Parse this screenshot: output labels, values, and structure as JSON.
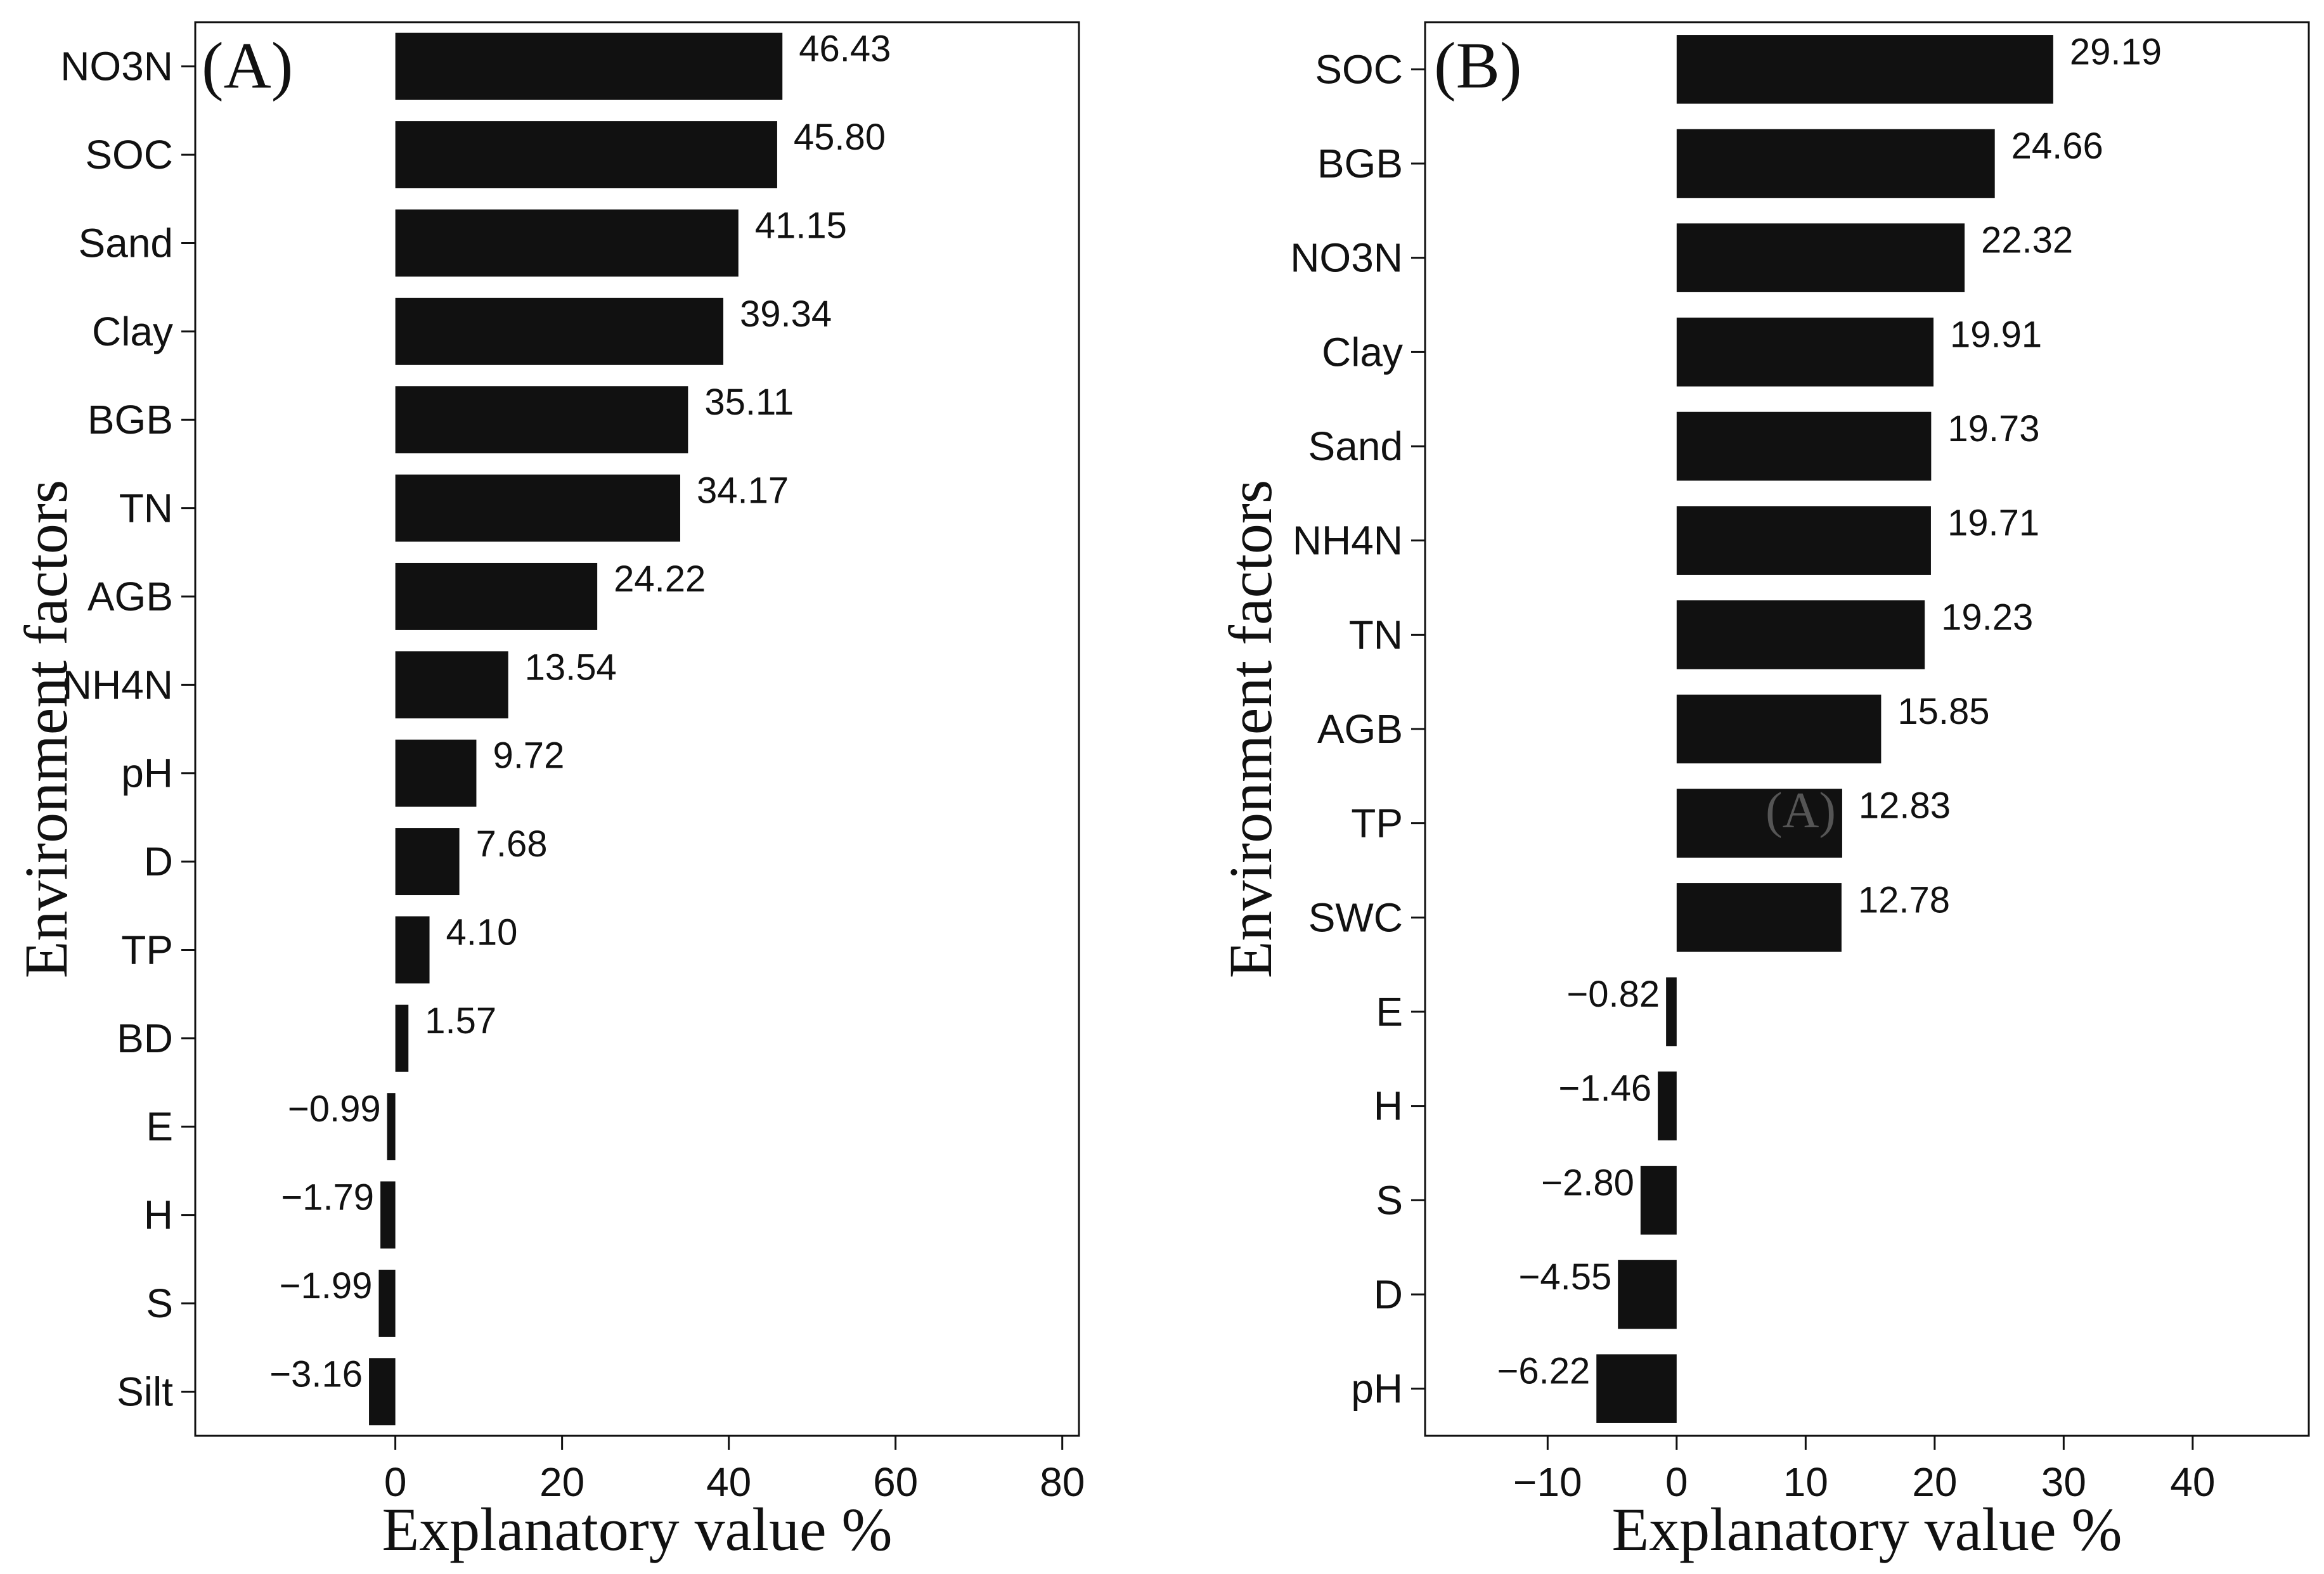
{
  "figure": {
    "stray_text": "(A)"
  },
  "chart_data": [
    {
      "type": "bar",
      "orientation": "horizontal",
      "panel_label": "(A)",
      "title": "",
      "xlabel": "Explanatory value %",
      "ylabel": "Environment factors",
      "categories": [
        "NO3N",
        "SOC",
        "Sand",
        "Clay",
        "BGB",
        "TN",
        "AGB",
        "NH4N",
        "pH",
        "D",
        "TP",
        "BD",
        "E",
        "H",
        "S",
        "Silt"
      ],
      "values": [
        46.43,
        45.8,
        41.15,
        39.34,
        35.11,
        34.17,
        24.22,
        13.54,
        9.72,
        7.68,
        4.1,
        1.57,
        -0.99,
        -1.79,
        -1.99,
        -3.16
      ],
      "value_labels": [
        "46.43",
        "45.80",
        "41.15",
        "39.34",
        "35.11",
        "34.17",
        "24.22",
        "13.54",
        "9.72",
        "7.68",
        "4.10",
        "1.57",
        "−0.99",
        "−1.79",
        "−1.99",
        "−3.16"
      ],
      "xlim": [
        -24,
        82
      ],
      "xticks": [
        0,
        20,
        40,
        60,
        80
      ],
      "xtick_labels": [
        "0",
        "20",
        "40",
        "60",
        "80"
      ],
      "bar_color": "#111111",
      "grid": false
    },
    {
      "type": "bar",
      "orientation": "horizontal",
      "panel_label": "(B)",
      "title": "",
      "xlabel": "Explanatory value %",
      "ylabel": "Environment factors",
      "categories": [
        "SOC",
        "BGB",
        "NO3N",
        "Clay",
        "Sand",
        "NH4N",
        "TN",
        "AGB",
        "TP",
        "SWC",
        "E",
        "H",
        "S",
        "D",
        "pH"
      ],
      "values": [
        29.19,
        24.66,
        22.32,
        19.91,
        19.73,
        19.71,
        19.23,
        15.85,
        12.83,
        12.78,
        -0.82,
        -1.46,
        -2.8,
        -4.55,
        -6.22
      ],
      "value_labels": [
        "29.19",
        "24.66",
        "22.32",
        "19.91",
        "19.73",
        "19.71",
        "19.23",
        "15.85",
        "12.83",
        "12.78",
        "−0.82",
        "−1.46",
        "−2.80",
        "−4.55",
        "−6.22"
      ],
      "xlim": [
        -19.5,
        49
      ],
      "xticks": [
        -10,
        0,
        10,
        20,
        30,
        40
      ],
      "xtick_labels": [
        "−10",
        "0",
        "10",
        "20",
        "30",
        "40"
      ],
      "bar_color": "#111111",
      "grid": false
    }
  ]
}
